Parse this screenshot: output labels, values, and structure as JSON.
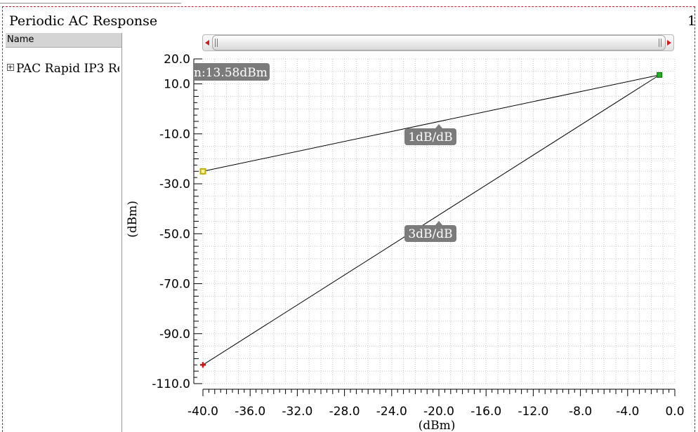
{
  "window": {
    "title": "Periodic AC Response",
    "subplot_index": "1"
  },
  "browser": {
    "header": "Name",
    "item": "PAC Rapid IP3 Re"
  },
  "colors": {
    "frame": "#c0202a",
    "trace": "#000000",
    "grid": "#c8c8c8",
    "callout_bg": "#7b7b7b",
    "marker_start_1db": "#b8b000",
    "marker_end": "#20b020",
    "marker_start_3db": "#d01010"
  },
  "chart_data": {
    "type": "line",
    "xlabel": "(dBm)",
    "ylabel": "(dBm)",
    "xlim": [
      -40,
      0
    ],
    "ylim": [
      -110,
      20
    ],
    "xticks": [
      "-40.0",
      "-36.0",
      "-32.0",
      "-28.0",
      "-24.0",
      "-20.0",
      "-16.0",
      "-12.0",
      "-8.0",
      "-4.0",
      "0.0"
    ],
    "yticks": [
      "20.0",
      "10.0",
      "-10.0",
      "-30.0",
      "-50.0",
      "-70.0",
      "-90.0",
      "-110.0"
    ],
    "grid": true,
    "series": [
      {
        "name": "1dB/dB",
        "x": [
          -40.0,
          -1.3
        ],
        "y": [
          -25.0,
          13.58
        ]
      },
      {
        "name": "3dB/dB",
        "x": [
          -40.0,
          -1.3
        ],
        "y": [
          -102.5,
          13.58
        ]
      }
    ],
    "annotations": [
      {
        "text": "1dB/dB"
      },
      {
        "text": "3dB/dB"
      },
      {
        "text": "n:13.58dBm"
      }
    ]
  }
}
